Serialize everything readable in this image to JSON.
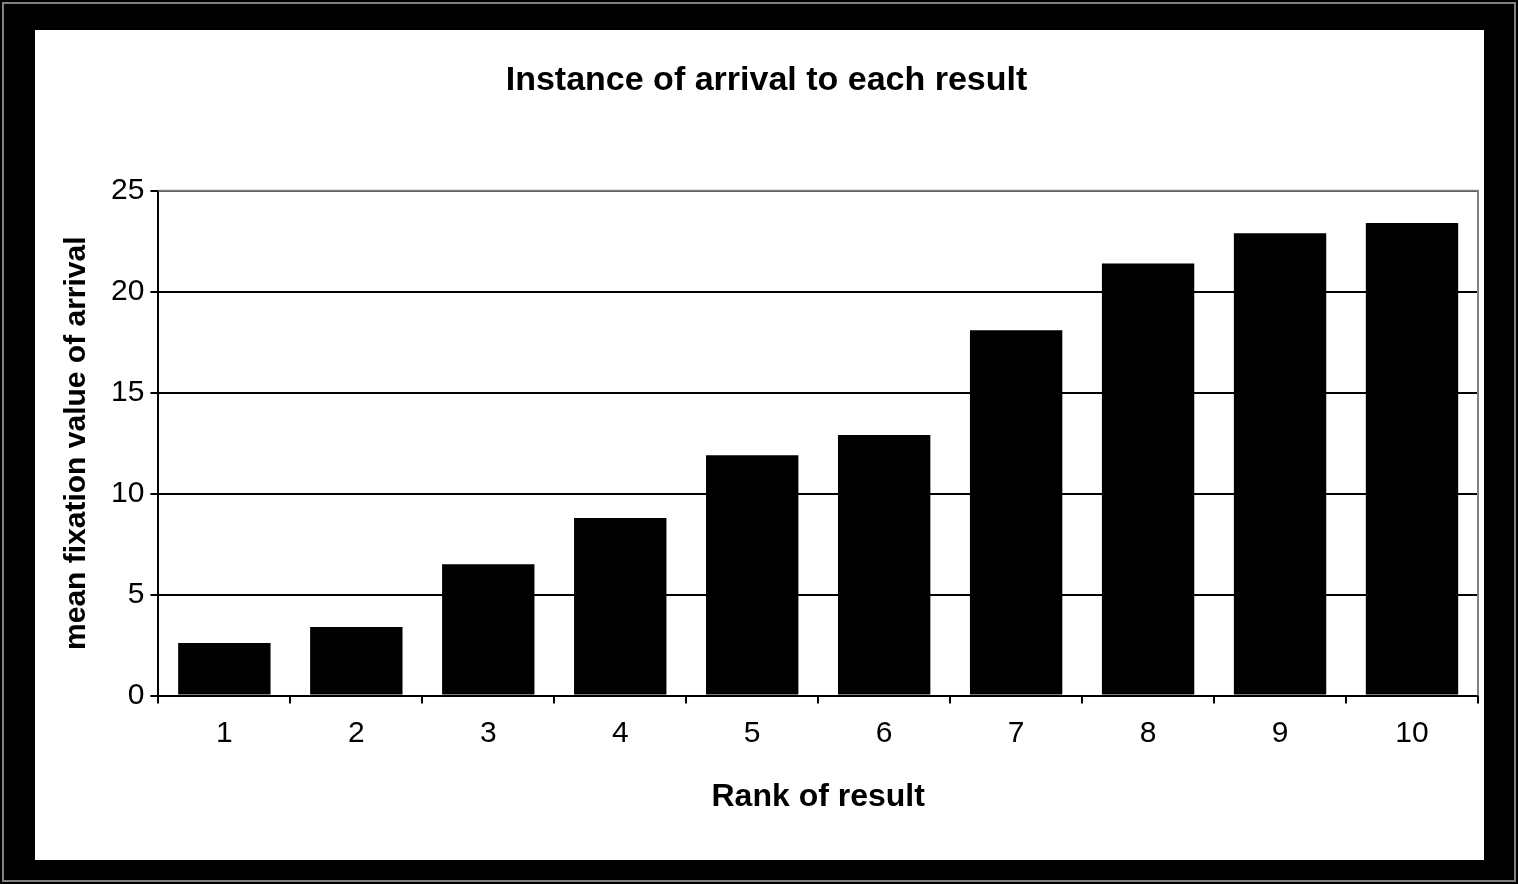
{
  "chart_data": {
    "type": "bar",
    "title": "Instance of arrival to each result",
    "xlabel": "Rank of result",
    "ylabel": "mean fixation value of arrival",
    "categories": [
      "1",
      "2",
      "3",
      "4",
      "5",
      "6",
      "7",
      "8",
      "9",
      "10"
    ],
    "values": [
      2.6,
      3.4,
      6.5,
      8.8,
      11.9,
      12.9,
      18.1,
      21.4,
      22.9,
      23.4
    ],
    "color": "#000000",
    "ylim": [
      0,
      25
    ],
    "yticks": [
      0,
      5,
      10,
      15,
      20,
      25
    ],
    "grid": "y",
    "legend": false
  }
}
